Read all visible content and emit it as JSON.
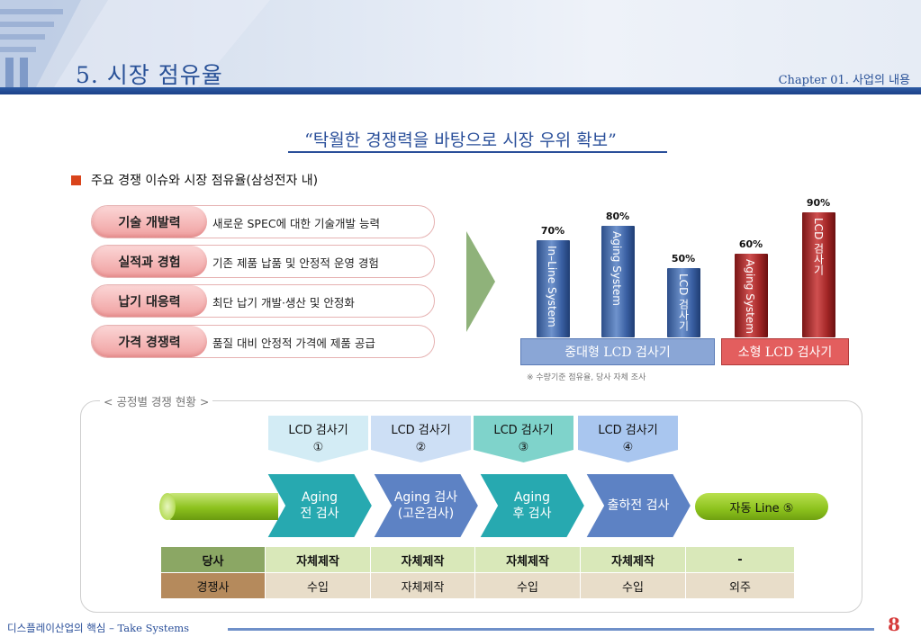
{
  "header": {
    "title": "5. 시장 점유율",
    "chapter": "Chapter 01. 사업의 내용"
  },
  "headline": "“탁월한 경쟁력을 바탕으로 시장 우위 확보”",
  "section_title": "주요 경쟁 이슈와 시장 점유율(삼성전자 내)",
  "issues": [
    {
      "label": "기술 개발력",
      "desc": "새로운 SPEC에 대한 기술개발 능력"
    },
    {
      "label": "실적과 경험",
      "desc": "기존 제품 납품 및 안정적 운영 경험"
    },
    {
      "label": "납기 대응력",
      "desc": "최단 납기 개발·생산 및 안정화"
    },
    {
      "label": "가격 경쟁력",
      "desc": "품질 대비 안정적 가격에 제품 공급"
    }
  ],
  "chart_data": {
    "type": "bar",
    "categories": [
      "In–Line System",
      "Aging System",
      "LCD 검사기",
      "Aging System",
      "LCD 검사기"
    ],
    "values": [
      70,
      80,
      50,
      60,
      90
    ],
    "value_labels": [
      "70%",
      "80%",
      "50%",
      "60%",
      "90%"
    ],
    "groups": [
      {
        "name": "중대형 LCD 검사기",
        "members": [
          0,
          1,
          2
        ],
        "color": "#3a60a3"
      },
      {
        "name": "소형 LCD 검사기",
        "members": [
          3,
          4
        ],
        "color": "#a32626"
      }
    ],
    "ylim": [
      0,
      100
    ],
    "grid": false,
    "note": "※ 수량기준 점유율, 당사 자체 조사"
  },
  "process": {
    "title": "< 공정별 경쟁 현황 >",
    "lcd_boxes": [
      {
        "line1": "LCD 검사기",
        "line2": "①",
        "color": "#d3ecf5"
      },
      {
        "line1": "LCD 검사기",
        "line2": "②",
        "color": "#cddff5"
      },
      {
        "line1": "LCD 검사기",
        "line2": "③",
        "color": "#7fd3cb"
      },
      {
        "line1": "LCD 검사기",
        "line2": "④",
        "color": "#a9c6ef"
      }
    ],
    "stages": [
      {
        "line1": "Aging",
        "line2": "전 검사",
        "color": "#27a9b0"
      },
      {
        "line1": "Aging 검사",
        "line2": "(고온검사)",
        "color": "#5d82c4"
      },
      {
        "line1": "Aging",
        "line2": "후 검사",
        "color": "#27a9b0"
      },
      {
        "line1": "출하전 검사",
        "line2": "",
        "color": "#5d82c4"
      }
    ],
    "auto_line": "자동 Line ⑤"
  },
  "table": {
    "rows": [
      {
        "head": "당사",
        "cells": [
          "자체제작",
          "자체제작",
          "자체제작",
          "자체제작",
          "-"
        ]
      },
      {
        "head": "경쟁사",
        "cells": [
          "수입",
          "자체제작",
          "수입",
          "수입",
          "외주"
        ]
      }
    ]
  },
  "footer": {
    "text": "디스플레이산업의 핵심 – Take Systems",
    "page": "8"
  }
}
